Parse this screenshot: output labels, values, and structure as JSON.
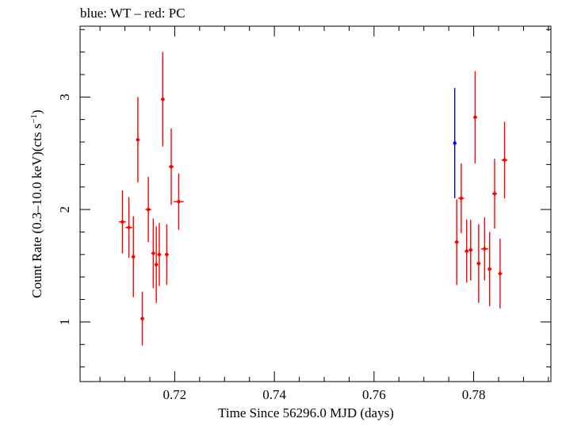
{
  "chart_data": {
    "type": "scatter",
    "title": "blue: WT – red: PC",
    "xlabel": "Time Since 56296.0 MJD (days)",
    "ylabel_main": "Count Rate (0.3–10.0 keV)(cts s",
    "ylabel_sup": "−1",
    "ylabel_close": ")",
    "xlim": [
      0.701,
      0.7955
    ],
    "ylim": [
      0.47,
      3.63
    ],
    "x_ticks": [
      0.72,
      0.74,
      0.76,
      0.78
    ],
    "x_tick_labels": [
      "0.72",
      "0.74",
      "0.76",
      "0.78"
    ],
    "y_ticks": [
      1,
      2,
      3
    ],
    "y_tick_labels": [
      "1",
      "2",
      "3"
    ],
    "series": [
      {
        "color": "#0000ff",
        "points": [
          {
            "x": 0.7762,
            "y": 2.59,
            "yerr": 0.49,
            "xerr": 0.0001
          }
        ]
      },
      {
        "color": "#ff0000",
        "points": [
          {
            "x": 0.7095,
            "y": 1.89,
            "yerr": 0.28,
            "xerr": 0.0007
          },
          {
            "x": 0.7108,
            "y": 1.84,
            "yerr": 0.27,
            "xerr": 0.0007
          },
          {
            "x": 0.7117,
            "y": 1.58,
            "yerr": 0.36,
            "xerr": 0.0004
          },
          {
            "x": 0.7126,
            "y": 2.62,
            "yerr": 0.38,
            "xerr": 0.0004
          },
          {
            "x": 0.7135,
            "y": 1.03,
            "yerr": 0.24,
            "xerr": 0.0004
          },
          {
            "x": 0.7147,
            "y": 2.0,
            "yerr": 0.29,
            "xerr": 0.0006
          },
          {
            "x": 0.7157,
            "y": 1.61,
            "yerr": 0.31,
            "xerr": 0.0004
          },
          {
            "x": 0.7163,
            "y": 1.51,
            "yerr": 0.34,
            "xerr": 0.0003
          },
          {
            "x": 0.7169,
            "y": 1.6,
            "yerr": 0.28,
            "xerr": 0.0004
          },
          {
            "x": 0.7176,
            "y": 2.98,
            "yerr": 0.42,
            "xerr": 0.0004
          },
          {
            "x": 0.7184,
            "y": 1.6,
            "yerr": 0.27,
            "xerr": 0.0004
          },
          {
            "x": 0.7193,
            "y": 2.38,
            "yerr": 0.34,
            "xerr": 0.0005
          },
          {
            "x": 0.7208,
            "y": 2.07,
            "yerr": 0.25,
            "xerr": 0.001
          },
          {
            "x": 0.7766,
            "y": 1.71,
            "yerr": 0.38,
            "xerr": 0.0004
          },
          {
            "x": 0.7775,
            "y": 2.1,
            "yerr": 0.31,
            "xerr": 0.0006
          },
          {
            "x": 0.7786,
            "y": 1.63,
            "yerr": 0.28,
            "xerr": 0.0004
          },
          {
            "x": 0.7794,
            "y": 1.64,
            "yerr": 0.27,
            "xerr": 0.0004
          },
          {
            "x": 0.7803,
            "y": 2.82,
            "yerr": 0.41,
            "xerr": 0.0004
          },
          {
            "x": 0.781,
            "y": 1.52,
            "yerr": 0.35,
            "xerr": 0.0004
          },
          {
            "x": 0.7822,
            "y": 1.65,
            "yerr": 0.28,
            "xerr": 0.0007
          },
          {
            "x": 0.7832,
            "y": 1.47,
            "yerr": 0.33,
            "xerr": 0.0004
          },
          {
            "x": 0.7842,
            "y": 2.14,
            "yerr": 0.31,
            "xerr": 0.0005
          },
          {
            "x": 0.7853,
            "y": 1.43,
            "yerr": 0.31,
            "xerr": 0.0004
          },
          {
            "x": 0.7862,
            "y": 2.44,
            "yerr": 0.34,
            "xerr": 0.0006
          }
        ]
      }
    ]
  }
}
